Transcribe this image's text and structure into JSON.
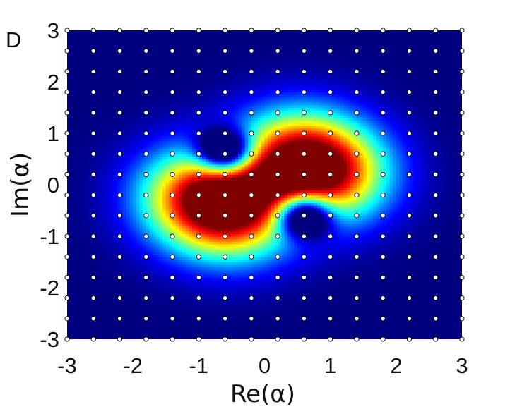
{
  "panel_label": "D",
  "chart_data": {
    "type": "heatmap",
    "title": "",
    "xlabel": "Re(α)",
    "ylabel": "Im(α)",
    "xlim": [
      -3,
      3
    ],
    "ylim": [
      -3,
      3
    ],
    "xticks": [
      -3,
      -2,
      -1,
      0,
      1,
      2,
      3
    ],
    "yticks": [
      -3,
      -2,
      -1,
      0,
      1,
      2,
      3
    ],
    "xtick_labels": [
      "-3",
      "-2",
      "-1",
      "0",
      "1",
      "2",
      "3"
    ],
    "ytick_labels": [
      "-3",
      "-2",
      "-1",
      "0",
      "1",
      "2",
      "3"
    ],
    "colormap": "jet",
    "colors": {
      "low": "#00008f",
      "mid": "#00ffff",
      "high": "#7f0000"
    },
    "density_features": {
      "peaks": [
        [
          0.45,
          0.55
        ],
        [
          -0.45,
          -0.55
        ],
        [
          -1.0,
          -0.2
        ],
        [
          1.0,
          0.2
        ]
      ],
      "holes": [
        [
          -0.6,
          0.65
        ],
        [
          0.6,
          -0.6
        ]
      ]
    },
    "grid_points": {
      "x": [
        -3,
        -2.6,
        -2.2,
        -1.8,
        -1.4,
        -1.0,
        -0.6,
        -0.2,
        0.2,
        0.6,
        1.0,
        1.4,
        1.8,
        2.2,
        2.6,
        3
      ],
      "y": [
        3,
        2.6,
        2.2,
        1.8,
        1.4,
        1.0,
        0.6,
        0.2,
        -0.2,
        -0.6,
        -1.0,
        -1.4,
        -1.8,
        -2.2,
        -2.6,
        -3
      ],
      "marker": "open-circle",
      "marker_color": "#ffffff"
    }
  }
}
